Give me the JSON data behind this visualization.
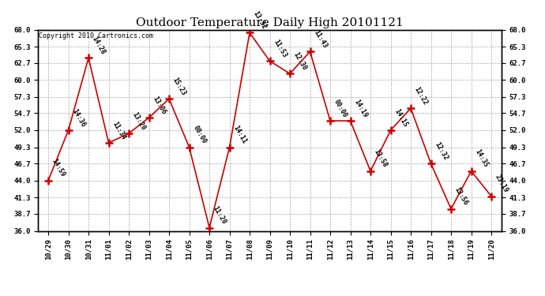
{
  "title": "Outdoor Temperature Daily High 20101121",
  "copyright": "Copyright 2010 Cartronics.com",
  "x_labels": [
    "10/29",
    "10/30",
    "10/31",
    "11/01",
    "11/02",
    "11/03",
    "11/04",
    "11/05",
    "11/06",
    "11/07",
    "11/08",
    "11/09",
    "11/10",
    "11/11",
    "11/12",
    "11/13",
    "11/14",
    "11/15",
    "11/16",
    "11/17",
    "11/18",
    "11/19",
    "11/20"
  ],
  "y_values": [
    44.0,
    52.0,
    63.5,
    50.0,
    51.5,
    54.0,
    57.0,
    49.3,
    36.5,
    49.3,
    67.5,
    63.0,
    61.0,
    64.5,
    53.5,
    53.5,
    45.5,
    52.0,
    55.5,
    46.7,
    39.5,
    45.5,
    41.5
  ],
  "point_labels": [
    "14:59",
    "14:36",
    "14:28",
    "11:34",
    "13:20",
    "13:06",
    "15:23",
    "00:00",
    "11:20",
    "14:11",
    "13:32",
    "11:53",
    "12:30",
    "11:43",
    "00:00",
    "14:19",
    "13:58",
    "14:15",
    "12:22",
    "12:32",
    "13:56",
    "14:35",
    "23:19"
  ],
  "ylim_min": 36.0,
  "ylim_max": 68.0,
  "yticks": [
    36.0,
    38.7,
    41.3,
    44.0,
    46.7,
    49.3,
    52.0,
    54.7,
    57.3,
    60.0,
    62.7,
    65.3,
    68.0
  ],
  "ytick_labels": [
    "36.0",
    "38.7",
    "41.3",
    "44.0",
    "46.7",
    "49.3",
    "52.0",
    "54.7",
    "57.3",
    "60.0",
    "62.7",
    "65.3",
    "68.0"
  ],
  "line_color": "#cc0000",
  "marker_color": "#cc0000",
  "bg_color": "#ffffff",
  "grid_color": "#aaaaaa",
  "title_fontsize": 11,
  "tick_fontsize": 6.5,
  "point_label_fontsize": 6,
  "copyright_fontsize": 6
}
